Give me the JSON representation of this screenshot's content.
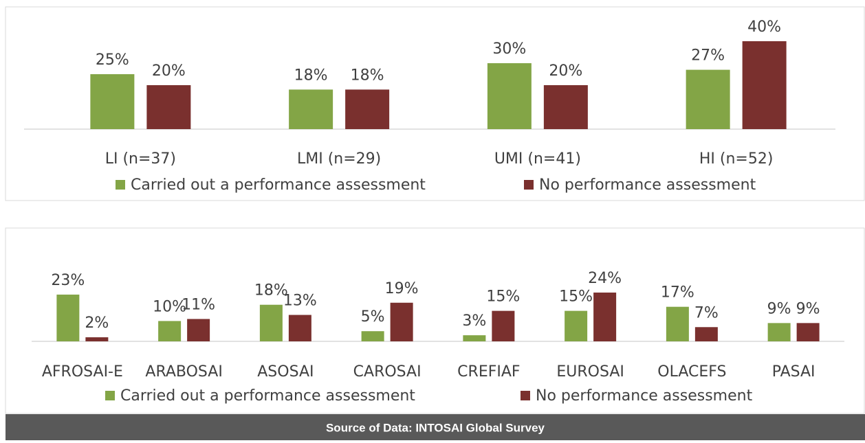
{
  "chart_data": [
    {
      "type": "bar",
      "categories": [
        "LI (n=37)",
        "LMI (n=29)",
        "UMI (n=41)",
        "HI  (n=52)"
      ],
      "series": [
        {
          "name": "Carried out a performance assessment",
          "color": "#83a546",
          "values": [
            25,
            18,
            30,
            27
          ],
          "value_labels": [
            "25%",
            "18%",
            "30%",
            "27%"
          ]
        },
        {
          "name": "No performance assessment",
          "color": "#7a302e",
          "values": [
            20,
            18,
            20,
            40
          ],
          "value_labels": [
            "20%",
            "18%",
            "20%",
            "40%"
          ]
        }
      ]
    },
    {
      "type": "bar",
      "categories": [
        "AFROSAI-E",
        "ARABOSAI",
        "ASOSAI",
        "CAROSAI",
        "CREFIAF",
        "EUROSAI",
        "OLACEFS",
        "PASAI"
      ],
      "series": [
        {
          "name": "Carried out a performance assessment",
          "color": "#83a546",
          "values": [
            23,
            10,
            18,
            5,
            3,
            15,
            17,
            9
          ],
          "value_labels": [
            "23%",
            "10%",
            "18%",
            "5%",
            "3%",
            "15%",
            "17%",
            "9%"
          ]
        },
        {
          "name": "No performance assessment",
          "color": "#7a302e",
          "values": [
            2,
            11,
            13,
            19,
            15,
            24,
            7,
            9
          ],
          "value_labels": [
            "2%",
            "11%",
            "13%",
            "19%",
            "15%",
            "24%",
            "7%",
            "9%"
          ]
        }
      ]
    }
  ],
  "source": "Source of Data: INTOSAI Global Survey"
}
